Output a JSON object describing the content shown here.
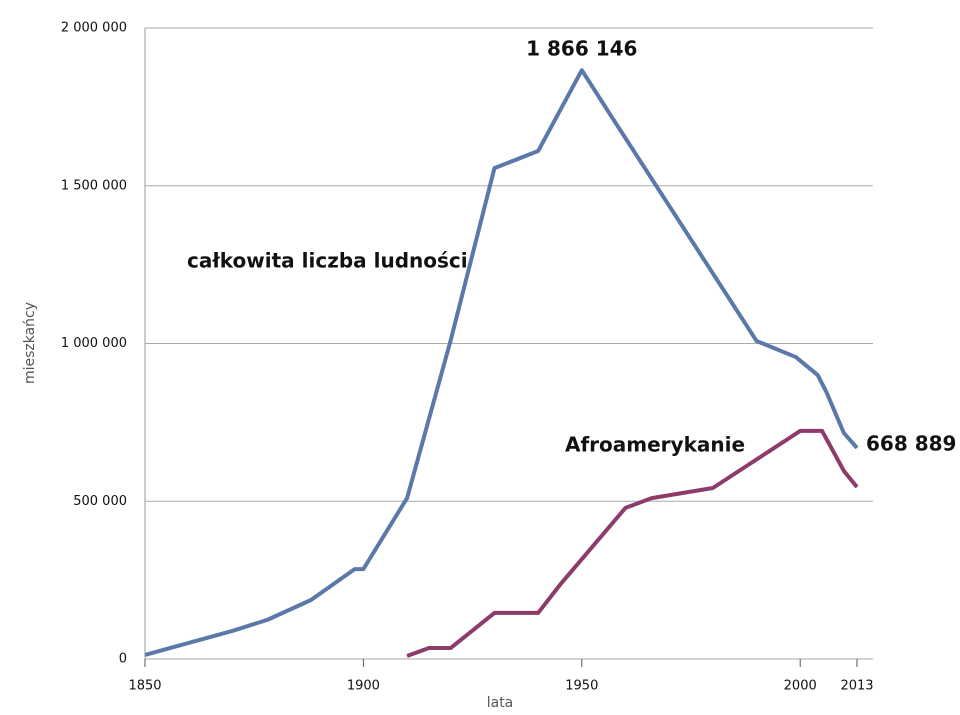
{
  "chart_data": {
    "type": "line",
    "x_label": "lata",
    "y_label": "mieszkańcy",
    "xlim": [
      1850,
      2013
    ],
    "ylim": [
      0,
      2000000
    ],
    "xticks": [
      1850,
      1900,
      1950,
      2000,
      2013
    ],
    "yticks": [
      0,
      {
        "value": 500000,
        "label": "500 000"
      },
      {
        "value": 1000000,
        "label": "1 000 000"
      },
      {
        "value": 1500000,
        "label": "1 500 000"
      },
      {
        "value": 2000000,
        "label": "2 000 000"
      }
    ],
    "grid": true,
    "series": [
      {
        "name": "całkowita liczba ludności",
        "color": "#5a78a8",
        "x": [
          1850,
          1870,
          1878,
          1888,
          1898,
          1900,
          1910,
          1920,
          1930,
          1940,
          1950,
          1957,
          1990,
          1999,
          2004,
          2006,
          2010,
          2013
        ],
        "values": [
          13000,
          89000,
          124000,
          187000,
          285000,
          285000,
          510000,
          1011000,
          1556000,
          1610000,
          1866146,
          1715000,
          1008000,
          957000,
          900000,
          846000,
          716000,
          668889
        ],
        "value_labels": [
          null,
          null,
          null,
          null,
          null,
          null,
          null,
          null,
          null,
          null,
          "1 866 146",
          null,
          null,
          null,
          null,
          null,
          null,
          "668 889"
        ]
      },
      {
        "name": "Afroamerykanie",
        "color": "#8c3b6b",
        "x": [
          1910,
          1915,
          1920,
          1930,
          1940,
          1945,
          1960,
          1966,
          1980,
          2000,
          2005,
          2010,
          2013
        ],
        "values": [
          9500,
          35000,
          35000,
          146000,
          146000,
          235000,
          479000,
          510000,
          542000,
          723000,
          723000,
          596000,
          545000
        ]
      }
    ]
  }
}
